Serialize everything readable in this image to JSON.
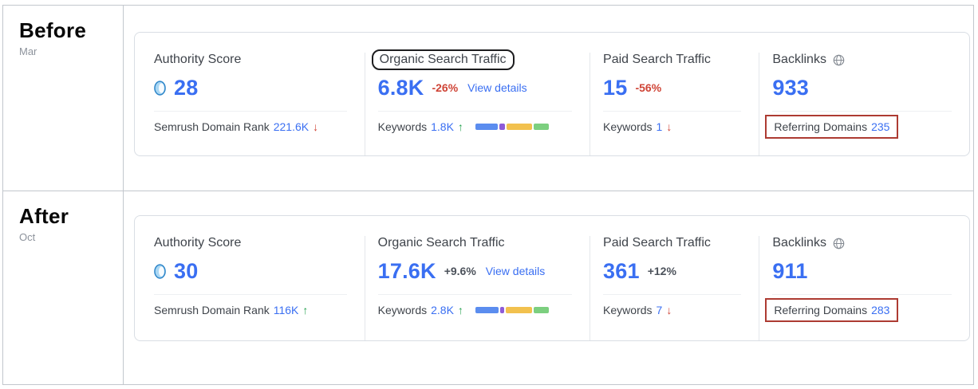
{
  "colors": {
    "accent_blue": "#3a6ff2",
    "negative_red": "#cf4436",
    "positive_green": "#23a04d",
    "neutral_dark": "#3f444b",
    "muted_gray": "#8d939c"
  },
  "annotations": {
    "black_box_color": "#1d1d1f",
    "red_box_color": "#ad3b32"
  },
  "panels": [
    {
      "label": "Before",
      "period": "Mar",
      "authority": {
        "title": "Authority Score",
        "value": "28",
        "footer_label": "Semrush Domain Rank",
        "footer_value": "221.6K",
        "arrow": "↓",
        "arrow_color": "#cf4436"
      },
      "organic": {
        "title": "Organic Search Traffic",
        "value": "6.8K",
        "change": "-26%",
        "change_color": "#cf4436",
        "link": "View details",
        "keywords_label": "Keywords",
        "keywords_value": "1.8K",
        "arrow": "↑",
        "arrow_color": "#23a04d",
        "bar": [
          {
            "color": "#5b8def",
            "pct": 33
          },
          {
            "color": "#8e5bd8",
            "pct": 8
          },
          {
            "color": "#f2c14e",
            "pct": 37
          },
          {
            "color": "#7ccf7f",
            "pct": 22
          }
        ]
      },
      "paid": {
        "title": "Paid Search Traffic",
        "value": "15",
        "change": "-56%",
        "change_color": "#cf4436",
        "keywords_label": "Keywords",
        "keywords_value": "1",
        "arrow": "↓",
        "arrow_color": "#cf4436"
      },
      "backlinks": {
        "title": "Backlinks",
        "value": "933",
        "footer_label": "Referring Domains",
        "footer_value": "235"
      }
    },
    {
      "label": "After",
      "period": "Oct",
      "authority": {
        "title": "Authority Score",
        "value": "30",
        "footer_label": "Semrush Domain Rank",
        "footer_value": "116K",
        "arrow": "↑",
        "arrow_color": "#23a04d"
      },
      "organic": {
        "title": "Organic Search Traffic",
        "value": "17.6K",
        "change": "+9.6%",
        "change_color": "#4c525b",
        "link": "View details",
        "keywords_label": "Keywords",
        "keywords_value": "2.8K",
        "arrow": "↑",
        "arrow_color": "#23a04d",
        "bar": [
          {
            "color": "#5b8def",
            "pct": 34
          },
          {
            "color": "#8e5bd8",
            "pct": 6
          },
          {
            "color": "#f2c14e",
            "pct": 38
          },
          {
            "color": "#7ccf7f",
            "pct": 22
          }
        ]
      },
      "paid": {
        "title": "Paid Search Traffic",
        "value": "361",
        "change": "+12%",
        "change_color": "#4c525b",
        "keywords_label": "Keywords",
        "keywords_value": "7",
        "arrow": "↓",
        "arrow_color": "#cf4436"
      },
      "backlinks": {
        "title": "Backlinks",
        "value": "911",
        "footer_label": "Referring Domains",
        "footer_value": "283"
      }
    }
  ]
}
